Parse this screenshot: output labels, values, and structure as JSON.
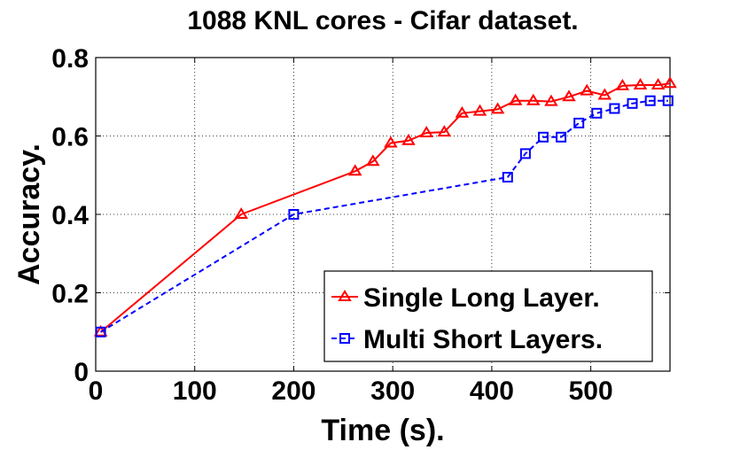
{
  "chart_data": {
    "type": "line",
    "title": "1088 KNL cores - Cifar dataset.",
    "xlabel": "Time (s).",
    "ylabel": "Accuracy.",
    "xlim": [
      0,
      580
    ],
    "ylim": [
      0,
      0.8
    ],
    "xticks": [
      "0",
      "100",
      "200",
      "300",
      "400",
      "500"
    ],
    "yticks": [
      "0",
      "0.2",
      "0.4",
      "0.6",
      "0.8"
    ],
    "grid": true,
    "legend_position": "bottom-right",
    "series": [
      {
        "name": "Single Long Layer.",
        "color": "#ff0000",
        "line_style": "solid",
        "marker": "triangle",
        "x": [
          5,
          147,
          262,
          280,
          298,
          316,
          334,
          352,
          370,
          388,
          406,
          424,
          442,
          460,
          478,
          496,
          514,
          532,
          550,
          568,
          580
        ],
        "y": [
          0.1,
          0.4,
          0.51,
          0.535,
          0.582,
          0.588,
          0.608,
          0.61,
          0.658,
          0.663,
          0.668,
          0.69,
          0.69,
          0.688,
          0.7,
          0.715,
          0.704,
          0.728,
          0.73,
          0.73,
          0.734
        ]
      },
      {
        "name": "Multi Short Layers.",
        "color": "#0000ff",
        "line_style": "dashed",
        "marker": "square",
        "x": [
          5,
          200,
          416,
          434,
          452,
          470,
          488,
          506,
          524,
          542,
          560,
          578
        ],
        "y": [
          0.1,
          0.4,
          0.495,
          0.555,
          0.597,
          0.597,
          0.633,
          0.658,
          0.67,
          0.683,
          0.69,
          0.69
        ]
      }
    ]
  }
}
